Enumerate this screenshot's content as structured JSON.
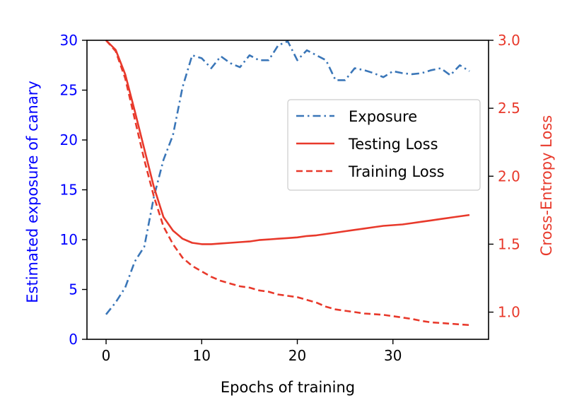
{
  "chart_data": {
    "type": "line",
    "xlabel": "Epochs of training",
    "xlim": [
      -2,
      40
    ],
    "xticks": [
      0,
      10,
      20,
      30
    ],
    "ylabel_left": "Estimated exposure of canary",
    "ylim_left": [
      0,
      30
    ],
    "yticks_left": [
      0,
      5,
      10,
      15,
      20,
      25,
      30
    ],
    "ylabel_right": "Cross-Entropy Loss",
    "ylim_right": [
      0.8,
      3.0
    ],
    "yticks_right": [
      "1.0",
      "1.5",
      "2.0",
      "2.5",
      "3.0"
    ],
    "left_axis_color": "#0000ff",
    "right_axis_color": "#e8392b",
    "grid": false,
    "legend_position": "center-right",
    "series": [
      {
        "name": "Exposure",
        "axis": "left",
        "style": "dashdot",
        "color": "#3a76b8",
        "x": [
          0,
          1,
          2,
          3,
          4,
          5,
          6,
          7,
          8,
          9,
          10,
          11,
          12,
          13,
          14,
          15,
          16,
          17,
          18,
          19,
          20,
          21,
          22,
          23,
          24,
          25,
          26,
          27,
          28,
          29,
          30,
          31,
          32,
          33,
          34,
          35,
          36,
          37,
          38
        ],
        "y": [
          2.5,
          3.7,
          5.2,
          7.8,
          9.3,
          14.3,
          18.0,
          20.5,
          25.3,
          28.5,
          28.2,
          27.2,
          28.4,
          27.7,
          27.3,
          28.5,
          28.0,
          28.0,
          29.5,
          29.9,
          28.0,
          29.0,
          28.5,
          28.0,
          26.0,
          26.0,
          27.2,
          27.0,
          26.7,
          26.3,
          26.9,
          26.7,
          26.6,
          26.7,
          27.0,
          27.2,
          26.5,
          27.5,
          26.9
        ]
      },
      {
        "name": "Testing Loss",
        "axis": "right",
        "style": "solid",
        "color": "#e8392b",
        "x": [
          0,
          1,
          2,
          3,
          4,
          5,
          6,
          7,
          8,
          9,
          10,
          11,
          12,
          13,
          14,
          15,
          16,
          17,
          18,
          19,
          20,
          21,
          22,
          23,
          24,
          25,
          26,
          27,
          28,
          29,
          30,
          31,
          32,
          33,
          34,
          35,
          36,
          37,
          38
        ],
        "y": [
          3.0,
          2.93,
          2.75,
          2.48,
          2.2,
          1.92,
          1.7,
          1.6,
          1.54,
          1.51,
          1.5,
          1.5,
          1.505,
          1.51,
          1.515,
          1.52,
          1.53,
          1.535,
          1.54,
          1.545,
          1.55,
          1.56,
          1.565,
          1.575,
          1.585,
          1.595,
          1.605,
          1.615,
          1.625,
          1.635,
          1.64,
          1.645,
          1.655,
          1.665,
          1.675,
          1.685,
          1.695,
          1.705,
          1.715
        ]
      },
      {
        "name": "Training Loss",
        "axis": "right",
        "style": "dashed",
        "color": "#e8392b",
        "x": [
          0,
          1,
          2,
          3,
          4,
          5,
          6,
          7,
          8,
          9,
          10,
          11,
          12,
          13,
          14,
          15,
          16,
          17,
          18,
          19,
          20,
          21,
          22,
          23,
          24,
          25,
          26,
          27,
          28,
          29,
          30,
          31,
          32,
          33,
          34,
          35,
          36,
          37,
          38
        ],
        "y": [
          3.0,
          2.92,
          2.72,
          2.42,
          2.12,
          1.85,
          1.63,
          1.5,
          1.4,
          1.34,
          1.3,
          1.26,
          1.23,
          1.21,
          1.19,
          1.18,
          1.16,
          1.15,
          1.13,
          1.12,
          1.11,
          1.09,
          1.07,
          1.04,
          1.02,
          1.01,
          1.0,
          0.99,
          0.985,
          0.98,
          0.97,
          0.96,
          0.95,
          0.935,
          0.925,
          0.92,
          0.915,
          0.91,
          0.905
        ]
      }
    ]
  }
}
